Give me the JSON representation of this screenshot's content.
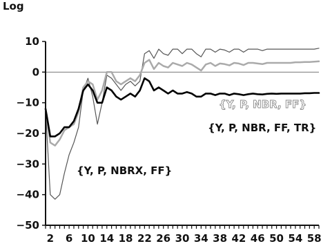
{
  "chart_data": {
    "type": "line",
    "ylabel": "Log",
    "ylim": [
      -50,
      10
    ],
    "yticks": [
      10,
      0,
      -10,
      -20,
      -30,
      -40,
      -50
    ],
    "ytick_labels": [
      "10",
      "0",
      "−10",
      "−20",
      "−30",
      "−40",
      "−50"
    ],
    "xlim": [
      1,
      59
    ],
    "xticks": [
      2,
      6,
      10,
      14,
      18,
      22,
      26,
      30,
      34,
      38,
      42,
      46,
      50,
      54,
      58
    ],
    "grid": false,
    "reference_line": 0,
    "series": [
      {
        "name": "{Y, P, NBRX, FF}",
        "color": "#555555",
        "stroke_width": 1.2,
        "points": [
          [
            1,
            -12
          ],
          [
            2,
            -40
          ],
          [
            3,
            -41.5
          ],
          [
            4,
            -40
          ],
          [
            5,
            -33
          ],
          [
            6,
            -27
          ],
          [
            7,
            -23
          ],
          [
            8,
            -18
          ],
          [
            9,
            -6
          ],
          [
            10,
            -2
          ],
          [
            11,
            -8
          ],
          [
            12,
            -17
          ],
          [
            13,
            -10
          ],
          [
            14,
            -1
          ],
          [
            15,
            -2
          ],
          [
            16,
            -4
          ],
          [
            17,
            -6
          ],
          [
            18,
            -4
          ],
          [
            19,
            -3
          ],
          [
            20,
            -4.5
          ],
          [
            21,
            -3
          ],
          [
            22,
            6
          ],
          [
            23,
            7
          ],
          [
            24,
            4.5
          ],
          [
            25,
            7.5
          ],
          [
            26,
            6
          ],
          [
            27,
            5.5
          ],
          [
            28,
            7.5
          ],
          [
            29,
            7.5
          ],
          [
            30,
            6
          ],
          [
            31,
            7.5
          ],
          [
            32,
            7.5
          ],
          [
            33,
            6
          ],
          [
            34,
            5
          ],
          [
            35,
            7.5
          ],
          [
            36,
            7.5
          ],
          [
            37,
            6.5
          ],
          [
            38,
            7.5
          ],
          [
            39,
            7.2
          ],
          [
            40,
            6.5
          ],
          [
            41,
            7.5
          ],
          [
            42,
            7.5
          ],
          [
            43,
            6.5
          ],
          [
            44,
            7.5
          ],
          [
            45,
            7.5
          ],
          [
            46,
            7.5
          ],
          [
            47,
            7
          ],
          [
            48,
            7.5
          ],
          [
            49,
            7.5
          ],
          [
            50,
            7.5
          ],
          [
            51,
            7.5
          ],
          [
            52,
            7.5
          ],
          [
            53,
            7.5
          ],
          [
            54,
            7.5
          ],
          [
            55,
            7.5
          ],
          [
            56,
            7.5
          ],
          [
            57,
            7.5
          ],
          [
            58,
            7.5
          ],
          [
            59,
            7.8
          ]
        ]
      },
      {
        "name": "{Y, P, NBR, FF}",
        "color": "#aaaaaa",
        "stroke_width": 2.5,
        "points": [
          [
            1,
            -12
          ],
          [
            2,
            -23
          ],
          [
            3,
            -24
          ],
          [
            4,
            -22
          ],
          [
            5,
            -19
          ],
          [
            6,
            -18
          ],
          [
            7,
            -17
          ],
          [
            8,
            -13
          ],
          [
            9,
            -5
          ],
          [
            10,
            -3
          ],
          [
            11,
            -4
          ],
          [
            12,
            -9
          ],
          [
            13,
            -6
          ],
          [
            14,
            0
          ],
          [
            15,
            0
          ],
          [
            16,
            -3
          ],
          [
            17,
            -4
          ],
          [
            18,
            -3
          ],
          [
            19,
            -2
          ],
          [
            20,
            -3
          ],
          [
            21,
            -1
          ],
          [
            22,
            3
          ],
          [
            23,
            4
          ],
          [
            24,
            1
          ],
          [
            25,
            3
          ],
          [
            26,
            2
          ],
          [
            27,
            1.5
          ],
          [
            28,
            3
          ],
          [
            29,
            2.5
          ],
          [
            30,
            2
          ],
          [
            31,
            3
          ],
          [
            32,
            2.5
          ],
          [
            33,
            1.5
          ],
          [
            34,
            0.5
          ],
          [
            35,
            2.5
          ],
          [
            36,
            3
          ],
          [
            37,
            2
          ],
          [
            38,
            2.8
          ],
          [
            39,
            2.6
          ],
          [
            40,
            2.2
          ],
          [
            41,
            3
          ],
          [
            42,
            2.8
          ],
          [
            43,
            2.3
          ],
          [
            44,
            3
          ],
          [
            45,
            3
          ],
          [
            46,
            2.8
          ],
          [
            47,
            2.6
          ],
          [
            48,
            3
          ],
          [
            49,
            3
          ],
          [
            50,
            3
          ],
          [
            51,
            3
          ],
          [
            52,
            3
          ],
          [
            53,
            3
          ],
          [
            54,
            3.2
          ],
          [
            55,
            3.2
          ],
          [
            56,
            3.3
          ],
          [
            57,
            3.3
          ],
          [
            58,
            3.4
          ],
          [
            59,
            3.5
          ]
        ]
      },
      {
        "name": "{Y, P, NBR, FF, TR}",
        "color": "#000000",
        "stroke_width": 2.6,
        "points": [
          [
            1,
            -12
          ],
          [
            2,
            -21
          ],
          [
            3,
            -21
          ],
          [
            4,
            -20
          ],
          [
            5,
            -18
          ],
          [
            6,
            -18
          ],
          [
            7,
            -16
          ],
          [
            8,
            -12
          ],
          [
            9,
            -6
          ],
          [
            10,
            -4
          ],
          [
            11,
            -6
          ],
          [
            12,
            -10
          ],
          [
            13,
            -10
          ],
          [
            14,
            -5
          ],
          [
            15,
            -6
          ],
          [
            16,
            -8
          ],
          [
            17,
            -9
          ],
          [
            18,
            -8
          ],
          [
            19,
            -7
          ],
          [
            20,
            -8
          ],
          [
            21,
            -6
          ],
          [
            22,
            -2
          ],
          [
            23,
            -3
          ],
          [
            24,
            -6
          ],
          [
            25,
            -5
          ],
          [
            26,
            -6
          ],
          [
            27,
            -7
          ],
          [
            28,
            -6
          ],
          [
            29,
            -7
          ],
          [
            30,
            -7
          ],
          [
            31,
            -6.5
          ],
          [
            32,
            -7
          ],
          [
            33,
            -8
          ],
          [
            34,
            -8
          ],
          [
            35,
            -7
          ],
          [
            36,
            -7
          ],
          [
            37,
            -7.5
          ],
          [
            38,
            -7
          ],
          [
            39,
            -7
          ],
          [
            40,
            -7.5
          ],
          [
            41,
            -7
          ],
          [
            42,
            -7.2
          ],
          [
            43,
            -7.5
          ],
          [
            44,
            -7.2
          ],
          [
            45,
            -7
          ],
          [
            46,
            -7.2
          ],
          [
            47,
            -7.3
          ],
          [
            48,
            -7.1
          ],
          [
            49,
            -7
          ],
          [
            50,
            -7.1
          ],
          [
            51,
            -7
          ],
          [
            52,
            -7
          ],
          [
            53,
            -7
          ],
          [
            54,
            -7
          ],
          [
            55,
            -7
          ],
          [
            56,
            -6.9
          ],
          [
            57,
            -6.9
          ],
          [
            58,
            -6.8
          ],
          [
            59,
            -6.8
          ]
        ]
      }
    ]
  }
}
